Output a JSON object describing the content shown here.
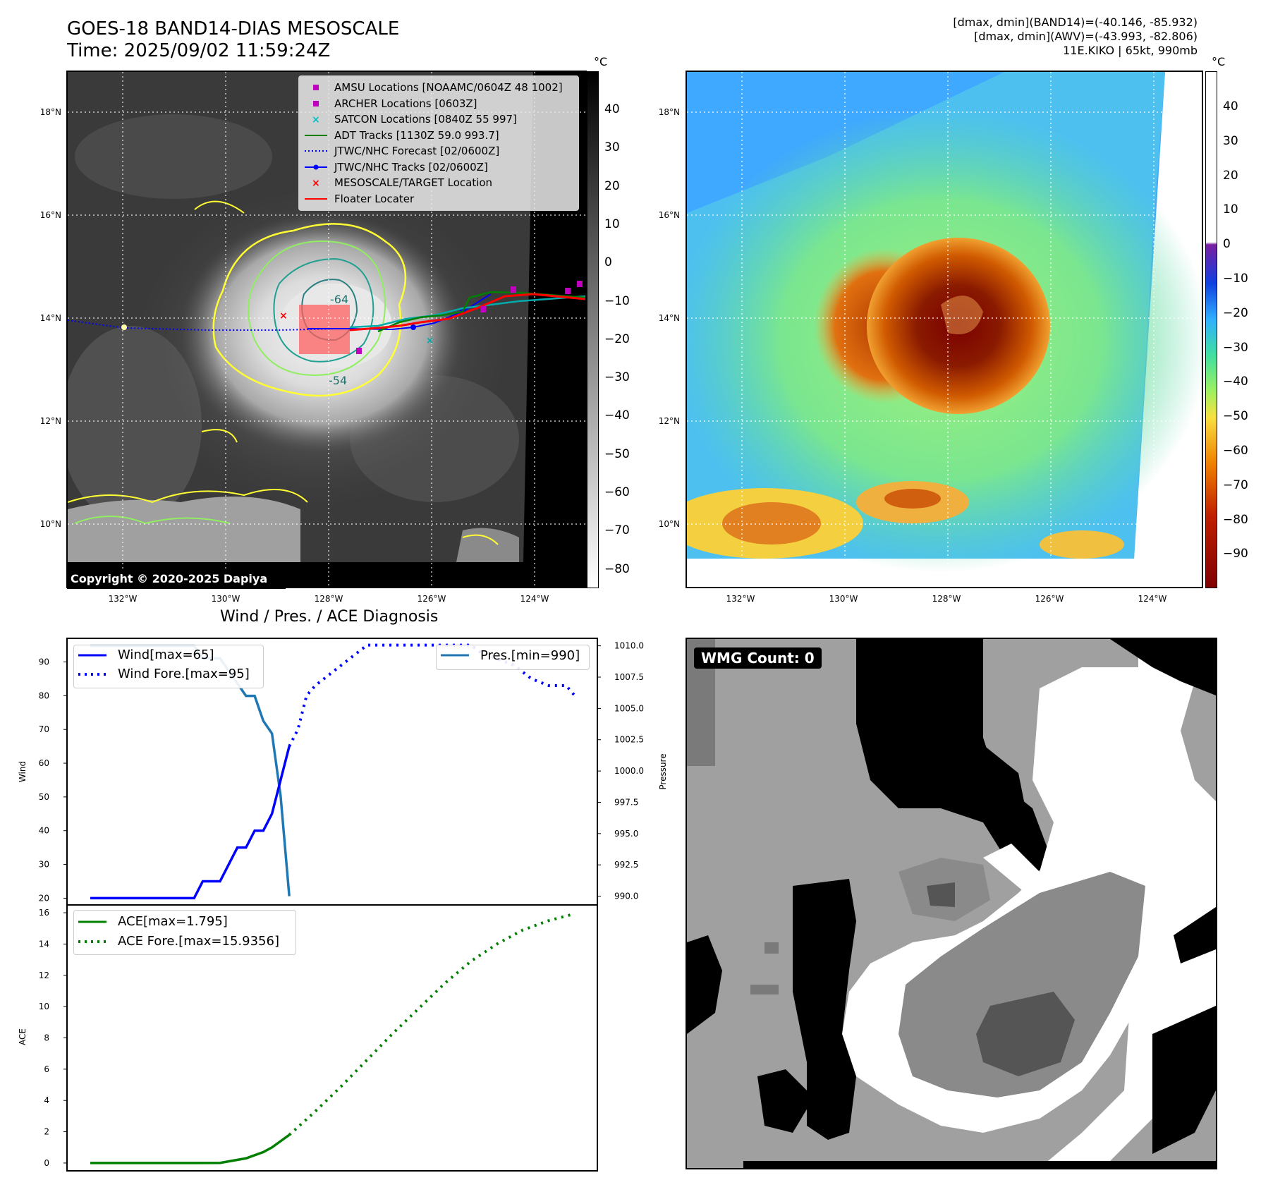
{
  "header": {
    "title_line1": "GOES-18 BAND14-DIAS MESOSCALE",
    "title_line2": "Time: 2025/09/02 11:59:24Z",
    "info_line1": "[dmax, dmin](BAND14)=(-40.146, -85.932)",
    "info_line2": "[dmax, dmin](AWV)=(-43.993, -82.806)",
    "info_line3": "11E.KIKO | 65kt, 990mb"
  },
  "map": {
    "lat_labels": [
      "18°N",
      "16°N",
      "14°N",
      "12°N",
      "10°N"
    ],
    "lon_labels": [
      "132°W",
      "130°W",
      "128°W",
      "126°W",
      "124°W"
    ],
    "contour_labels": [
      "-64",
      "-54"
    ],
    "copyright": "Copyright © 2020-2025 Dapiya",
    "legend": [
      {
        "label": "AMSU Locations [NOAAMC/0604Z 48 1002]",
        "color": "#bf00bf",
        "symbol": "square"
      },
      {
        "label": "ARCHER Locations [0603Z]",
        "color": "#bf00bf",
        "symbol": "square"
      },
      {
        "label": "SATCON Locations [0840Z 55 997]",
        "color": "#00bfbf",
        "symbol": "x"
      },
      {
        "label": "ADT Tracks [1130Z 59.0 993.7]",
        "color": "#008000",
        "symbol": "line"
      },
      {
        "label": "JTWC/NHC Forecast [02/0600Z]",
        "color": "#0000ff",
        "symbol": "dotted"
      },
      {
        "label": "JTWC/NHC Tracks [02/0600Z]",
        "color": "#0000ff",
        "symbol": "line-dot"
      },
      {
        "label": "MESOSCALE/TARGET Location",
        "color": "#ff0000",
        "symbol": "x"
      },
      {
        "label": "Floater Locater",
        "color": "#ff0000",
        "symbol": "line"
      }
    ]
  },
  "colorbar_left": {
    "unit": "°C",
    "ticks": [
      "40",
      "30",
      "20",
      "10",
      "0",
      "−10",
      "−20",
      "−30",
      "−40",
      "−50",
      "−60",
      "−70",
      "−80"
    ]
  },
  "colorbar_right": {
    "unit": "°C",
    "ticks": [
      "40",
      "30",
      "20",
      "10",
      "0",
      "−10",
      "−20",
      "−30",
      "−40",
      "−50",
      "−60",
      "−70",
      "−80",
      "−90"
    ]
  },
  "wmg": {
    "label": "WMG Count: 0"
  },
  "chart_data": [
    {
      "type": "line",
      "title": "Wind / Pres. / ACE Diagnosis",
      "ylabel": "Wind",
      "ylabel_right": "Pressure",
      "ylim": [
        18,
        97
      ],
      "ylim_right": [
        989.3,
        1010.6
      ],
      "yticks": [
        "20",
        "30",
        "40",
        "50",
        "60",
        "70",
        "80",
        "90"
      ],
      "yticks_right": [
        "990.0",
        "992.5",
        "995.0",
        "997.5",
        "1000.0",
        "1002.5",
        "1005.0",
        "1007.5",
        "1010.0"
      ],
      "x": [
        0,
        1,
        2,
        3,
        4,
        5,
        6,
        7,
        8,
        9,
        10,
        11,
        12,
        13,
        14,
        15,
        16,
        17,
        18,
        19,
        20,
        21,
        22,
        23,
        24,
        25,
        26,
        27,
        28,
        29,
        30,
        31,
        32,
        33,
        34,
        35,
        36,
        37,
        38,
        39,
        40,
        41,
        42,
        43,
        44,
        45,
        46,
        47,
        48,
        49,
        50,
        51,
        52,
        53,
        54,
        55,
        56
      ],
      "series": [
        {
          "name": "Wind[max=65]",
          "style": "solid",
          "color": "#0000ff",
          "axis": "left",
          "x": [
            0,
            1,
            2,
            3,
            4,
            5,
            6,
            7,
            8,
            9,
            10,
            11,
            12,
            13,
            14,
            15,
            16,
            17,
            18,
            19,
            20,
            21,
            22,
            23
          ],
          "values": [
            20,
            20,
            20,
            20,
            20,
            20,
            20,
            20,
            20,
            20,
            20,
            20,
            20,
            25,
            25,
            25,
            30,
            35,
            35,
            40,
            40,
            45,
            55,
            65
          ]
        },
        {
          "name": "Wind Fore.[max=95]",
          "style": "dotted",
          "color": "#0000ff",
          "axis": "left",
          "x": [
            23,
            24,
            25,
            26,
            27,
            28,
            29,
            30,
            31,
            32,
            33,
            34,
            35,
            36,
            37,
            38,
            39,
            40,
            41,
            42,
            43,
            44,
            45,
            46,
            47,
            48,
            49,
            50,
            51,
            52,
            53,
            54,
            55,
            56
          ],
          "values": [
            65,
            70,
            80,
            83,
            85,
            87,
            89,
            91,
            93,
            95,
            95,
            95,
            95,
            95,
            95,
            95,
            95,
            95,
            95,
            95,
            95,
            95,
            93,
            92,
            91,
            90,
            89,
            87,
            85,
            84,
            83,
            83,
            83,
            80
          ]
        },
        {
          "name": "Pres.[min=990]",
          "style": "solid",
          "color": "#1f77b4",
          "axis": "right",
          "x": [
            0,
            1,
            2,
            3,
            4,
            5,
            6,
            7,
            8,
            9,
            10,
            11,
            12,
            13,
            14,
            15,
            16,
            17,
            18,
            19,
            20,
            21,
            22,
            23
          ],
          "values": [
            1010,
            1010,
            1010,
            1010,
            1010,
            1010,
            1010,
            1010,
            1010,
            1010,
            1010,
            1010,
            1010,
            1009,
            1009,
            1009,
            1008,
            1007,
            1006,
            1006,
            1004,
            1003,
            998,
            990
          ]
        }
      ]
    },
    {
      "type": "line",
      "ylabel": "ACE",
      "ylim": [
        -0.5,
        16.5
      ],
      "yticks": [
        "0",
        "2",
        "4",
        "6",
        "8",
        "10",
        "12",
        "14",
        "16"
      ],
      "series": [
        {
          "name": "ACE[max=1.795]",
          "style": "solid",
          "color": "#008000",
          "x": [
            0,
            3,
            6,
            9,
            12,
            15,
            18,
            20,
            21,
            22,
            23
          ],
          "values": [
            0,
            0,
            0,
            0,
            0,
            0.01,
            0.3,
            0.7,
            1.0,
            1.4,
            1.795
          ]
        },
        {
          "name": "ACE Fore.[max=15.9356]",
          "style": "dotted",
          "color": "#008000",
          "x": [
            23,
            26,
            29,
            32,
            35,
            38,
            41,
            44,
            47,
            50,
            53,
            56
          ],
          "values": [
            1.795,
            3.3,
            4.9,
            6.6,
            8.3,
            9.9,
            11.5,
            12.9,
            14.0,
            14.9,
            15.5,
            15.9356
          ]
        }
      ]
    }
  ]
}
